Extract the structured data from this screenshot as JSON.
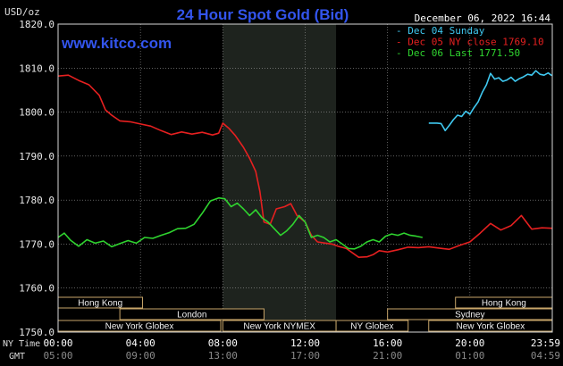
{
  "chart_data": {
    "type": "line",
    "title": "24 Hour Spot Gold (Bid)",
    "source": "www.kitco.com",
    "y_unit_label": "USD/oz",
    "date_label": "December 06, 2022 16:44",
    "ylim": [
      1750,
      1820
    ],
    "yticks": [
      "1820.0",
      "1810.0",
      "1800.0",
      "1790.0",
      "1780.0",
      "1770.0",
      "1760.0",
      "1750.0"
    ],
    "xlim": [
      0,
      24
    ],
    "xticks_ny": [
      "00:00",
      "04:00",
      "08:00",
      "12:00",
      "16:00",
      "20:00",
      "23:59"
    ],
    "xticks_gmt": [
      "05:00",
      "09:00",
      "13:00",
      "17:00",
      "21:00",
      "01:00",
      "04:59"
    ],
    "ny_time_label": "NY Time",
    "gmt_label": "GMT",
    "grid": true,
    "legend_position": "top-right",
    "series": [
      {
        "name": "Dec 04 Sunday",
        "color": "#3fc8f0",
        "x": [
          18.0,
          18.2,
          18.4,
          18.6,
          18.8,
          19.0,
          19.2,
          19.4,
          19.6,
          19.8,
          20.0,
          20.2,
          20.4,
          20.6,
          20.8,
          21.0,
          21.2,
          21.4,
          21.6,
          21.8,
          22.0,
          22.2,
          22.4,
          22.6,
          22.8,
          23.0,
          23.2,
          23.4,
          23.6,
          23.8,
          23.98
        ],
        "values": [
          1797.5,
          1797.5,
          1797.5,
          1797.4,
          1795.8,
          1797.0,
          1798.3,
          1799.3,
          1799.0,
          1800.2,
          1799.5,
          1801.0,
          1802.3,
          1804.5,
          1806.2,
          1808.8,
          1807.5,
          1807.8,
          1807.0,
          1807.3,
          1807.9,
          1807.0,
          1807.6,
          1808.0,
          1808.6,
          1808.4,
          1809.4,
          1808.6,
          1808.4,
          1808.9,
          1808.3
        ]
      },
      {
        "name": "Dec 05 NY close 1769.10",
        "color": "#e62020",
        "x": [
          0.0,
          0.5,
          1.0,
          1.5,
          2.0,
          2.3,
          2.6,
          3.0,
          3.5,
          4.0,
          4.5,
          5.0,
          5.5,
          6.0,
          6.5,
          7.0,
          7.5,
          7.8,
          8.0,
          8.3,
          8.6,
          9.0,
          9.3,
          9.6,
          9.8,
          10.0,
          10.3,
          10.6,
          11.0,
          11.3,
          11.6,
          12.0,
          12.3,
          12.6,
          13.0,
          13.3,
          13.6,
          14.0,
          14.3,
          14.6,
          15.0,
          15.3,
          15.6,
          16.0,
          16.5,
          17.0,
          17.5,
          18.0,
          18.5,
          19.0,
          19.5,
          20.0,
          20.5,
          21.0,
          21.5,
          22.0,
          22.5,
          23.0,
          23.5,
          23.98
        ],
        "values": [
          1808.2,
          1808.4,
          1807.2,
          1806.2,
          1803.8,
          1800.5,
          1799.3,
          1798.0,
          1797.8,
          1797.3,
          1796.8,
          1795.8,
          1794.9,
          1795.5,
          1795.0,
          1795.4,
          1794.8,
          1795.2,
          1797.5,
          1796.3,
          1794.7,
          1792.0,
          1789.5,
          1786.5,
          1782.0,
          1775.0,
          1774.5,
          1778.0,
          1778.5,
          1779.2,
          1776.5,
          1775.0,
          1772.0,
          1770.5,
          1770.2,
          1770.0,
          1769.5,
          1769.0,
          1768.0,
          1767.0,
          1767.1,
          1767.6,
          1768.5,
          1768.2,
          1768.7,
          1769.3,
          1769.2,
          1769.4,
          1769.1,
          1768.8,
          1769.7,
          1770.5,
          1772.5,
          1774.7,
          1773.2,
          1774.2,
          1776.5,
          1773.4,
          1773.7,
          1773.6
        ]
      },
      {
        "name": "Dec 06 Last 1771.50",
        "color": "#2fd42f",
        "x": [
          0.0,
          0.3,
          0.6,
          1.0,
          1.4,
          1.8,
          2.2,
          2.6,
          3.0,
          3.4,
          3.8,
          4.2,
          4.6,
          5.0,
          5.4,
          5.8,
          6.2,
          6.6,
          7.0,
          7.4,
          7.8,
          8.1,
          8.4,
          8.7,
          9.0,
          9.3,
          9.6,
          9.9,
          10.2,
          10.5,
          10.8,
          11.1,
          11.4,
          11.7,
          12.0,
          12.3,
          12.6,
          12.9,
          13.2,
          13.5,
          13.8,
          14.1,
          14.4,
          14.7,
          15.0,
          15.3,
          15.6,
          15.9,
          16.2,
          16.5,
          16.8,
          17.1,
          17.4,
          17.7
        ],
        "values": [
          1771.5,
          1772.5,
          1770.9,
          1769.5,
          1771.0,
          1770.2,
          1770.7,
          1769.4,
          1770.1,
          1770.8,
          1770.2,
          1771.5,
          1771.3,
          1772.0,
          1772.6,
          1773.5,
          1773.6,
          1774.5,
          1777.0,
          1779.8,
          1780.5,
          1780.3,
          1778.5,
          1779.3,
          1778.0,
          1776.5,
          1777.8,
          1776.0,
          1775.0,
          1773.5,
          1772.0,
          1773.0,
          1774.5,
          1776.5,
          1775.0,
          1771.5,
          1772.0,
          1771.5,
          1770.5,
          1771.0,
          1770.0,
          1769.0,
          1768.9,
          1769.5,
          1770.5,
          1771.0,
          1770.5,
          1771.8,
          1772.3,
          1772.0,
          1772.5,
          1772.0,
          1771.8,
          1771.5
        ]
      }
    ],
    "highlight_band": {
      "x0": 8.0,
      "x1": 13.5
    },
    "session_rows": [
      {
        "label": "Hong Kong",
        "bars": [
          {
            "start": 0.0,
            "end": 4.1
          },
          {
            "start": 19.3,
            "end": 24.0
          }
        ]
      },
      {
        "label": "London",
        "bars": [
          {
            "start": 3.0,
            "end": 10.0
          }
        ]
      },
      {
        "label": "Sydney",
        "bars": [
          {
            "start": 16.0,
            "end": 24.0
          }
        ]
      },
      {
        "label": "New York Globex",
        "bars": [
          {
            "start": 0.0,
            "end": 7.9
          },
          {
            "start": 18.0,
            "end": 24.0
          }
        ]
      },
      {
        "label": "New York NYMEX",
        "bars": [
          {
            "start": 8.0,
            "end": 13.5
          }
        ]
      },
      {
        "label": "NY Globex",
        "bars": [
          {
            "start": 13.5,
            "end": 17.0
          }
        ]
      }
    ]
  }
}
